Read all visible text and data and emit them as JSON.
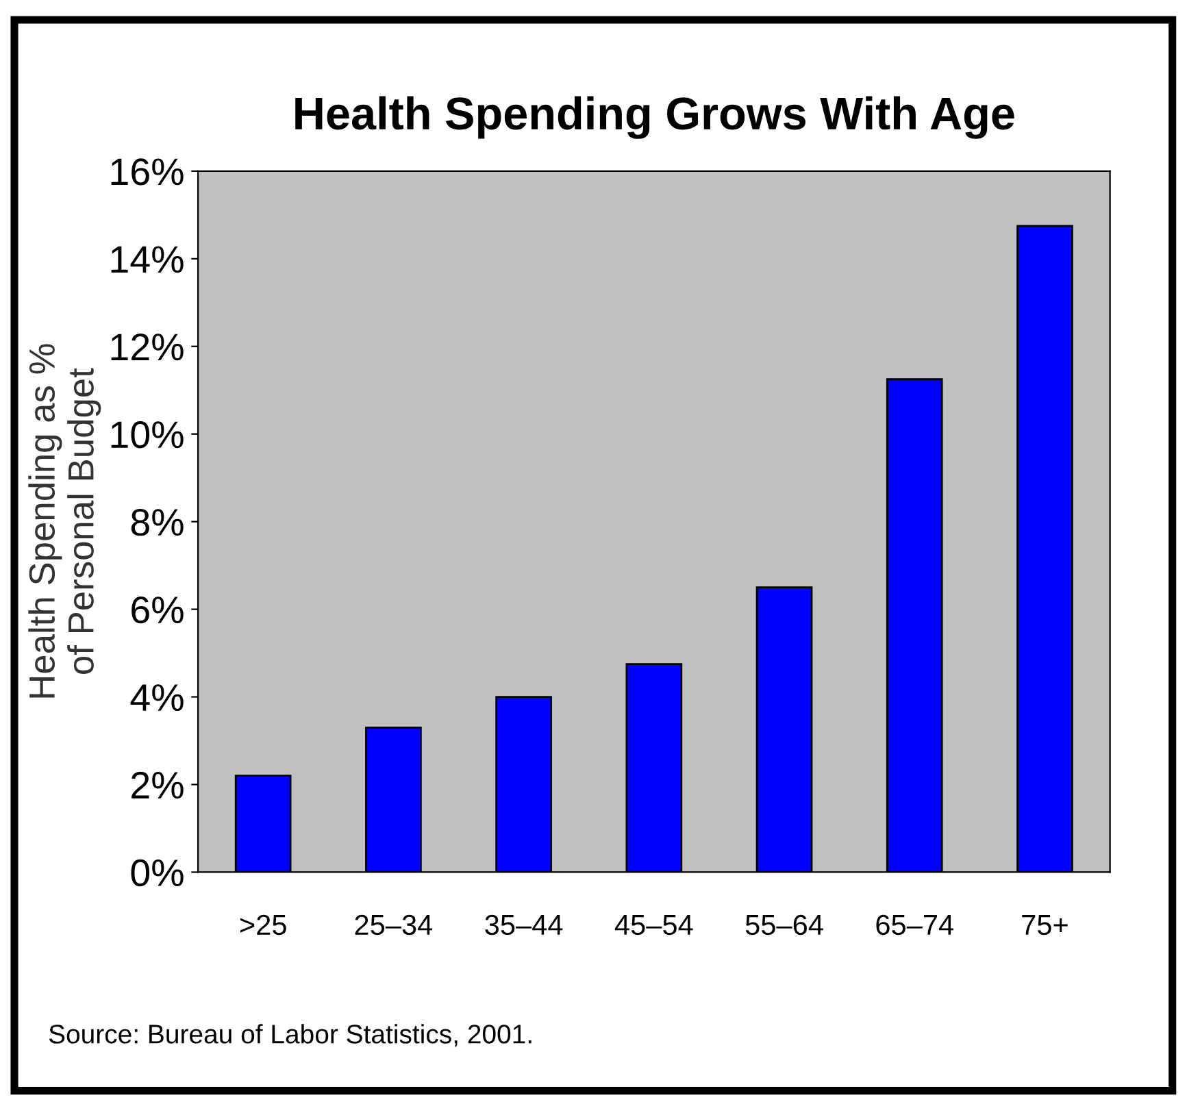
{
  "chart_data": {
    "type": "bar",
    "title": "Health Spending Grows With Age",
    "ylabel": "Health Spending as %\nof Personal Budget",
    "categories": [
      ">25",
      "25–34",
      "35–44",
      "45–54",
      "55–64",
      "65–74",
      "75+"
    ],
    "values": [
      2.2,
      3.3,
      4.0,
      4.75,
      6.5,
      11.25,
      14.75
    ],
    "color": "#0000ff",
    "ylim": [
      0,
      16
    ],
    "yticks": [
      {
        "value": 0,
        "label": "0%"
      },
      {
        "value": 2,
        "label": "2%"
      },
      {
        "value": 4,
        "label": "4%"
      },
      {
        "value": 6,
        "label": "6%"
      },
      {
        "value": 8,
        "label": "8%"
      },
      {
        "value": 10,
        "label": "10%"
      },
      {
        "value": 12,
        "label": "12%"
      },
      {
        "value": 14,
        "label": "14%"
      },
      {
        "value": 16,
        "label": "16%"
      }
    ],
    "grid": false,
    "annotations": [
      "Source: Bureau of Labor Statistics, 2001."
    ]
  }
}
